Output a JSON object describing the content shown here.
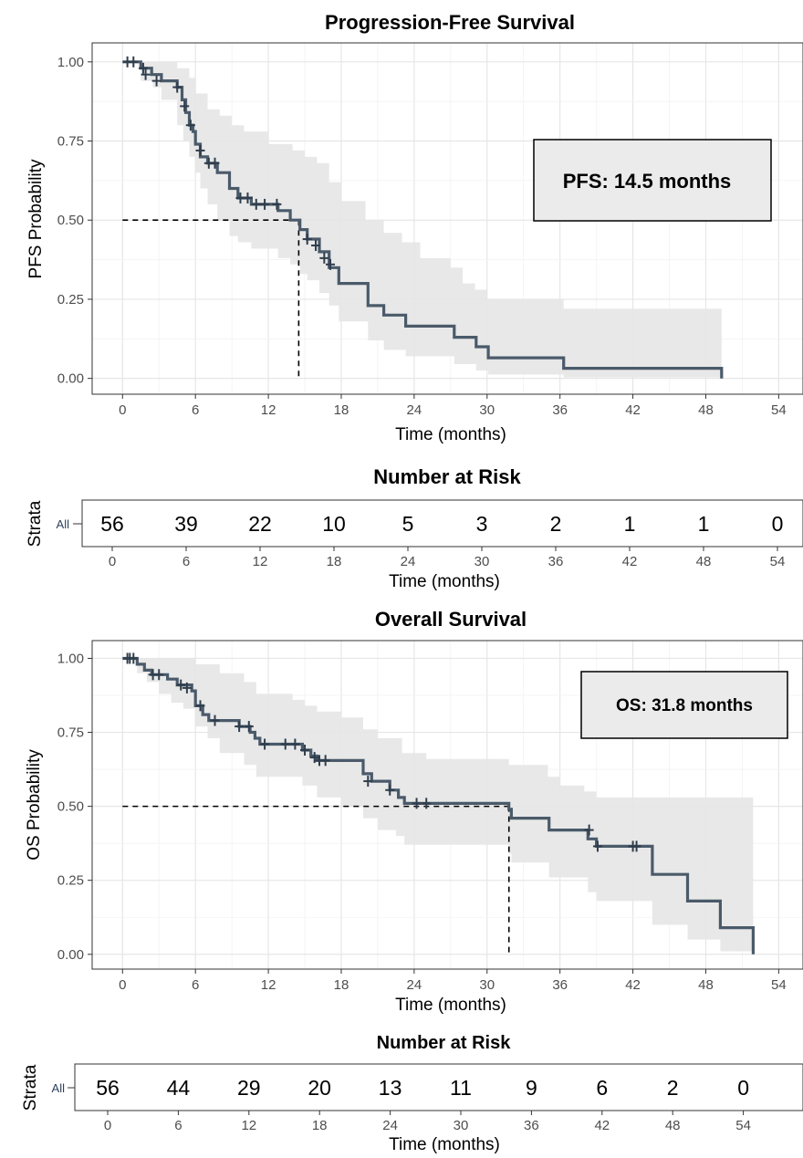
{
  "chart_data": [
    {
      "type": "line",
      "title": "Progression-Free Survival",
      "xlabel": "Time (months)",
      "ylabel": "PFS Probability",
      "xlim": [
        -2.5,
        56
      ],
      "ylim": [
        -0.05,
        1.06
      ],
      "xticks": [
        0,
        6,
        12,
        18,
        24,
        30,
        36,
        42,
        48,
        54
      ],
      "yticks": [
        0,
        0.25,
        0.5,
        0.75,
        1.0
      ],
      "ytick_labels": [
        "0.00",
        "0.25",
        "0.50",
        "0.75",
        "1.00"
      ],
      "grid": true,
      "annotation": "PFS: 14.5 months",
      "median": 14.5,
      "line_color": "#4a5a6a",
      "band_color": "#e5e5e5",
      "series": [
        {
          "steps": [
            [
              0,
              1.0
            ],
            [
              1.5,
              0.98
            ],
            [
              2.4,
              0.96
            ],
            [
              3.2,
              0.94
            ],
            [
              4.5,
              0.92
            ],
            [
              4.9,
              0.88
            ],
            [
              5.2,
              0.84
            ],
            [
              5.5,
              0.8
            ],
            [
              5.8,
              0.78
            ],
            [
              6.0,
              0.74
            ],
            [
              6.4,
              0.7
            ],
            [
              7.0,
              0.68
            ],
            [
              7.8,
              0.65
            ],
            [
              8.8,
              0.6
            ],
            [
              9.5,
              0.57
            ],
            [
              10.6,
              0.55
            ],
            [
              12.8,
              0.53
            ],
            [
              13.8,
              0.5
            ],
            [
              14.6,
              0.47
            ],
            [
              15.2,
              0.44
            ],
            [
              16.2,
              0.4
            ],
            [
              17.0,
              0.35
            ],
            [
              17.8,
              0.3
            ],
            [
              20.2,
              0.23
            ],
            [
              21.5,
              0.2
            ],
            [
              23.3,
              0.165
            ],
            [
              27.3,
              0.13
            ],
            [
              29.1,
              0.1
            ],
            [
              30.1,
              0.065
            ],
            [
              36.3,
              0.032
            ],
            [
              49.3,
              0.0
            ]
          ],
          "end": 49.3,
          "censor": [
            [
              0.4,
              1.0
            ],
            [
              0.9,
              1.0
            ],
            [
              1.7,
              0.98
            ],
            [
              1.9,
              0.96
            ],
            [
              2.8,
              0.94
            ],
            [
              4.5,
              0.92
            ],
            [
              5.1,
              0.86
            ],
            [
              5.6,
              0.8
            ],
            [
              6.4,
              0.72
            ],
            [
              7.1,
              0.68
            ],
            [
              7.6,
              0.68
            ],
            [
              9.7,
              0.57
            ],
            [
              10.3,
              0.57
            ],
            [
              11.0,
              0.55
            ],
            [
              11.7,
              0.55
            ],
            [
              12.7,
              0.55
            ],
            [
              15.2,
              0.44
            ],
            [
              15.9,
              0.42
            ],
            [
              16.6,
              0.38
            ],
            [
              17.1,
              0.36
            ]
          ],
          "upper": [
            [
              0,
              1.0
            ],
            [
              4,
              1.0
            ],
            [
              4.5,
              0.98
            ],
            [
              5.5,
              0.95
            ],
            [
              6,
              0.9
            ],
            [
              7,
              0.85
            ],
            [
              8,
              0.83
            ],
            [
              9,
              0.8
            ],
            [
              10,
              0.78
            ],
            [
              12,
              0.74
            ],
            [
              14,
              0.72
            ],
            [
              15,
              0.7
            ],
            [
              16,
              0.68
            ],
            [
              17,
              0.62
            ],
            [
              18,
              0.56
            ],
            [
              20,
              0.5
            ],
            [
              21.5,
              0.46
            ],
            [
              23,
              0.43
            ],
            [
              24.5,
              0.38
            ],
            [
              27,
              0.35
            ],
            [
              28,
              0.3
            ],
            [
              29,
              0.28
            ],
            [
              30,
              0.25
            ],
            [
              36.3,
              0.22
            ],
            [
              49.3,
              0.22
            ]
          ],
          "lower": [
            [
              0,
              1.0
            ],
            [
              1.5,
              0.94
            ],
            [
              2.5,
              0.92
            ],
            [
              3.2,
              0.88
            ],
            [
              4.5,
              0.8
            ],
            [
              5,
              0.75
            ],
            [
              5.5,
              0.7
            ],
            [
              6,
              0.65
            ],
            [
              6.4,
              0.6
            ],
            [
              7,
              0.55
            ],
            [
              7.8,
              0.5
            ],
            [
              8.8,
              0.45
            ],
            [
              9.5,
              0.43
            ],
            [
              10.6,
              0.41
            ],
            [
              12.8,
              0.38
            ],
            [
              13.8,
              0.36
            ],
            [
              14.6,
              0.33
            ],
            [
              15.2,
              0.31
            ],
            [
              16.2,
              0.27
            ],
            [
              17,
              0.23
            ],
            [
              17.8,
              0.18
            ],
            [
              20.2,
              0.12
            ],
            [
              21.5,
              0.09
            ],
            [
              23.3,
              0.07
            ],
            [
              27.3,
              0.045
            ],
            [
              29.1,
              0.025
            ],
            [
              30.1,
              0.012
            ],
            [
              36.3,
              0.003
            ],
            [
              49.3,
              0.003
            ]
          ]
        }
      ]
    },
    {
      "type": "table",
      "title": "Number at Risk",
      "xlabel": "Time (months)",
      "ylabel": "Strata",
      "strata": "All",
      "xticks": [
        0,
        6,
        12,
        18,
        24,
        30,
        36,
        42,
        48,
        54
      ],
      "values": [
        56,
        39,
        22,
        10,
        5,
        3,
        2,
        1,
        1,
        0
      ]
    },
    {
      "type": "line",
      "title": "Overall Survival",
      "xlabel": "Time (months)",
      "ylabel": "OS Probability",
      "xlim": [
        -2.5,
        56
      ],
      "ylim": [
        -0.05,
        1.06
      ],
      "xticks": [
        0,
        6,
        12,
        18,
        24,
        30,
        36,
        42,
        48,
        54
      ],
      "yticks": [
        0,
        0.25,
        0.5,
        0.75,
        1.0
      ],
      "ytick_labels": [
        "0.00",
        "0.25",
        "0.50",
        "0.75",
        "1.00"
      ],
      "grid": true,
      "annotation": "OS: 31.8 months",
      "median": 31.8,
      "line_color": "#4a5a6a",
      "band_color": "#e5e5e5",
      "series": [
        {
          "steps": [
            [
              0,
              1.0
            ],
            [
              1.2,
              0.98
            ],
            [
              1.8,
              0.96
            ],
            [
              2.4,
              0.945
            ],
            [
              3.7,
              0.93
            ],
            [
              4.5,
              0.91
            ],
            [
              5.7,
              0.89
            ],
            [
              6.0,
              0.84
            ],
            [
              6.6,
              0.81
            ],
            [
              7.1,
              0.79
            ],
            [
              9.6,
              0.77
            ],
            [
              10.5,
              0.75
            ],
            [
              10.9,
              0.73
            ],
            [
              11.3,
              0.71
            ],
            [
              14.8,
              0.69
            ],
            [
              15.5,
              0.67
            ],
            [
              16.0,
              0.655
            ],
            [
              19.8,
              0.61
            ],
            [
              20.5,
              0.585
            ],
            [
              22.0,
              0.555
            ],
            [
              22.7,
              0.53
            ],
            [
              23.2,
              0.51
            ],
            [
              31.8,
              0.49
            ],
            [
              32.0,
              0.46
            ],
            [
              35.1,
              0.42
            ],
            [
              38.3,
              0.39
            ],
            [
              39.0,
              0.365
            ],
            [
              43.6,
              0.27
            ],
            [
              46.5,
              0.18
            ],
            [
              49.2,
              0.09
            ],
            [
              51.9,
              0.0
            ]
          ],
          "end": 51.9,
          "censor": [
            [
              0.4,
              1.0
            ],
            [
              0.6,
              1.0
            ],
            [
              0.9,
              1.0
            ],
            [
              2.5,
              0.945
            ],
            [
              3.0,
              0.945
            ],
            [
              4.8,
              0.91
            ],
            [
              5.3,
              0.9
            ],
            [
              6.4,
              0.84
            ],
            [
              7.6,
              0.79
            ],
            [
              9.6,
              0.77
            ],
            [
              10.4,
              0.77
            ],
            [
              11.7,
              0.71
            ],
            [
              13.4,
              0.71
            ],
            [
              14.2,
              0.71
            ],
            [
              15.0,
              0.69
            ],
            [
              15.8,
              0.665
            ],
            [
              16.2,
              0.655
            ],
            [
              16.7,
              0.655
            ],
            [
              20.2,
              0.585
            ],
            [
              22.0,
              0.555
            ],
            [
              24.2,
              0.51
            ],
            [
              25.0,
              0.51
            ],
            [
              38.4,
              0.42
            ],
            [
              39.1,
              0.365
            ],
            [
              42.0,
              0.365
            ],
            [
              42.3,
              0.365
            ]
          ],
          "upper": [
            [
              0,
              1.0
            ],
            [
              4,
              1.0
            ],
            [
              6,
              0.98
            ],
            [
              8,
              0.95
            ],
            [
              10,
              0.92
            ],
            [
              11,
              0.88
            ],
            [
              14,
              0.86
            ],
            [
              15,
              0.84
            ],
            [
              16,
              0.82
            ],
            [
              18,
              0.8
            ],
            [
              19.8,
              0.76
            ],
            [
              21,
              0.73
            ],
            [
              23,
              0.68
            ],
            [
              25,
              0.66
            ],
            [
              30,
              0.66
            ],
            [
              31.8,
              0.64
            ],
            [
              35,
              0.6
            ],
            [
              36,
              0.57
            ],
            [
              38,
              0.55
            ],
            [
              39,
              0.53
            ],
            [
              43.6,
              0.53
            ],
            [
              46,
              0.53
            ],
            [
              51.9,
              0.53
            ]
          ],
          "lower": [
            [
              0,
              1.0
            ],
            [
              1.2,
              0.95
            ],
            [
              2,
              0.92
            ],
            [
              3,
              0.88
            ],
            [
              4,
              0.85
            ],
            [
              5,
              0.83
            ],
            [
              6,
              0.77
            ],
            [
              7,
              0.73
            ],
            [
              8,
              0.68
            ],
            [
              10,
              0.64
            ],
            [
              11,
              0.6
            ],
            [
              14.8,
              0.57
            ],
            [
              16,
              0.53
            ],
            [
              18,
              0.5
            ],
            [
              19.8,
              0.46
            ],
            [
              21,
              0.42
            ],
            [
              22.5,
              0.4
            ],
            [
              23.2,
              0.37
            ],
            [
              30,
              0.37
            ],
            [
              31.8,
              0.34
            ],
            [
              32,
              0.31
            ],
            [
              35.1,
              0.26
            ],
            [
              38.3,
              0.21
            ],
            [
              39,
              0.18
            ],
            [
              43.6,
              0.1
            ],
            [
              46.5,
              0.05
            ],
            [
              49.2,
              0.01
            ],
            [
              51.9,
              0.01
            ]
          ]
        }
      ]
    },
    {
      "type": "table",
      "title": "Number at Risk",
      "xlabel": "Time (months)",
      "ylabel": "Strata",
      "strata": "All",
      "xticks": [
        0,
        6,
        12,
        18,
        24,
        30,
        36,
        42,
        48,
        54
      ],
      "values": [
        56,
        44,
        29,
        20,
        13,
        11,
        9,
        6,
        2,
        0
      ]
    }
  ]
}
